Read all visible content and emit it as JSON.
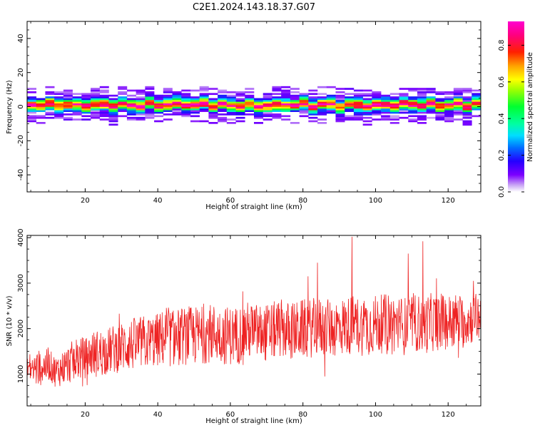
{
  "title": "C2E1.2024.143.18.37.G07",
  "colors": {
    "snr_line": "#ee2222",
    "axes": "#000000"
  },
  "chart_data": [
    {
      "type": "heatmap",
      "xlabel": "Height of straight line (km)",
      "ylabel": "Frequency (Hz)",
      "xlim": [
        4,
        129
      ],
      "ylim": [
        -50,
        50
      ],
      "xticks": [
        20,
        40,
        60,
        80,
        100,
        120
      ],
      "yticks": [
        -40,
        -20,
        0,
        20,
        40
      ],
      "xtick_labels": [
        "20",
        "40",
        "60",
        "80",
        "100",
        "120"
      ],
      "ytick_labels": [
        "-40",
        "-20",
        "0",
        "20",
        "40"
      ],
      "description_of_values": "Spectral energy concentrated around 0 Hz (roughly -6 to +6 Hz) along the full height range; peak (red/orange) ridge near +1 Hz, halo (purple) extending to about ±9 Hz.",
      "ridge_center_hz": 1,
      "core_halfwidth_hz": 3,
      "halo_halfwidth_hz": 9,
      "colorbar": {
        "label": "Normalized spectral amplitude",
        "range": [
          0,
          0.93
        ],
        "ticks": [
          0.0,
          0.2,
          0.4,
          0.6,
          0.8
        ],
        "tick_labels": [
          "0.0",
          "0.2",
          "0.4",
          "0.6",
          "0.8"
        ],
        "colormap": "gist_ncar-like (white → purple → blue → cyan → green → yellow → orange → red → magenta)"
      }
    },
    {
      "type": "line",
      "xlabel": "Height of straight line (km)",
      "ylabel": "SNR (10 * v/v)",
      "xlim": [
        4,
        129
      ],
      "ylim": [
        300,
        4050
      ],
      "xticks": [
        20,
        40,
        60,
        80,
        100,
        120
      ],
      "yticks": [
        1000,
        2000,
        3000,
        4000
      ],
      "xtick_labels": [
        "20",
        "40",
        "60",
        "80",
        "100",
        "120"
      ],
      "ytick_labels": [
        "1000",
        "2000",
        "3000",
        "4000"
      ],
      "series": [
        {
          "color": "#ee2222",
          "x": [
            4,
            6,
            8,
            10,
            12,
            14,
            16,
            18,
            20,
            22,
            24,
            26,
            28,
            30,
            32,
            34,
            36,
            38,
            40,
            42,
            44,
            46,
            48,
            50,
            52,
            54,
            56,
            58,
            60,
            62,
            64,
            66,
            68,
            70,
            72,
            74,
            76,
            78,
            80,
            82,
            84,
            86,
            88,
            90,
            92,
            94,
            96,
            98,
            100,
            102,
            104,
            106,
            108,
            110,
            112,
            114,
            116,
            118,
            120,
            122,
            124,
            126,
            128,
            129
          ],
          "y_mean": [
            1150,
            1100,
            1150,
            1200,
            1050,
            1150,
            1250,
            1350,
            1350,
            1450,
            1450,
            1500,
            1550,
            1600,
            1650,
            1650,
            1700,
            1700,
            1750,
            1800,
            1800,
            1800,
            1850,
            1850,
            1850,
            1900,
            1900,
            1850,
            1850,
            1850,
            1950,
            1950,
            1900,
            1900,
            1950,
            2000,
            1950,
            1950,
            2000,
            2000,
            2050,
            2000,
            2000,
            2050,
            2050,
            2100,
            2050,
            2050,
            2100,
            2100,
            2150,
            2100,
            2050,
            2150,
            2100,
            2100,
            2150,
            2150,
            2150,
            2200,
            2150,
            2200,
            2250,
            2250
          ],
          "y_spread": [
            350,
            400,
            400,
            350,
            350,
            400,
            450,
            500,
            450,
            500,
            550,
            500,
            550,
            550,
            600,
            600,
            600,
            600,
            600,
            650,
            650,
            650,
            650,
            650,
            650,
            650,
            650,
            650,
            650,
            650,
            650,
            650,
            650,
            650,
            650,
            650,
            650,
            650,
            650,
            650,
            650,
            650,
            650,
            650,
            650,
            650,
            650,
            650,
            650,
            650,
            650,
            650,
            650,
            650,
            650,
            650,
            650,
            650,
            600,
            600,
            600,
            550,
            550,
            550
          ],
          "peaks": [
            {
              "x": 93.5,
              "y": 4020
            },
            {
              "x": 113,
              "y": 3920
            },
            {
              "x": 109,
              "y": 3650
            },
            {
              "x": 84,
              "y": 3450
            },
            {
              "x": 127,
              "y": 3050
            }
          ]
        }
      ]
    }
  ]
}
